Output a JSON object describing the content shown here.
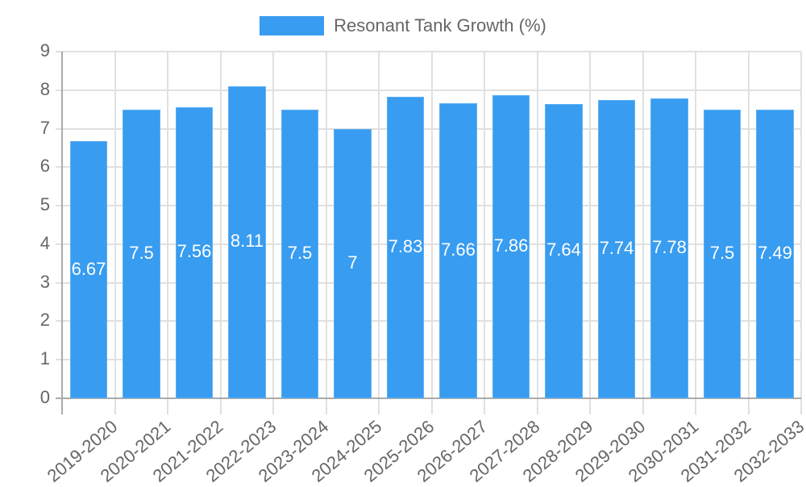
{
  "legend": {
    "label": "Resonant Tank Growth (%)",
    "color": "#389cf0"
  },
  "chart_data": {
    "type": "bar",
    "title": "",
    "xlabel": "",
    "ylabel": "",
    "ylim": [
      0,
      9
    ],
    "yticks": [
      0,
      1,
      2,
      3,
      4,
      5,
      6,
      7,
      8,
      9
    ],
    "grid": true,
    "legend_position": "top",
    "categories": [
      "2019-2020",
      "2020-2021",
      "2021-2022",
      "2022-2023",
      "2023-2024",
      "2024-2025",
      "2025-2026",
      "2026-2027",
      "2027-2028",
      "2028-2029",
      "2029-2030",
      "2030-2031",
      "2031-2032",
      "2032-2033"
    ],
    "series": [
      {
        "name": "Resonant Tank Growth (%)",
        "color": "#389cf0",
        "values": [
          6.67,
          7.5,
          7.56,
          8.11,
          7.5,
          7,
          7.83,
          7.66,
          7.86,
          7.64,
          7.74,
          7.78,
          7.5,
          7.49
        ]
      }
    ],
    "data_labels": [
      "6.67",
      "7.5",
      "7.56",
      "8.11",
      "7.5",
      "7",
      "7.83",
      "7.66",
      "7.86",
      "7.64",
      "7.74",
      "7.78",
      "7.5",
      "7.49"
    ]
  }
}
